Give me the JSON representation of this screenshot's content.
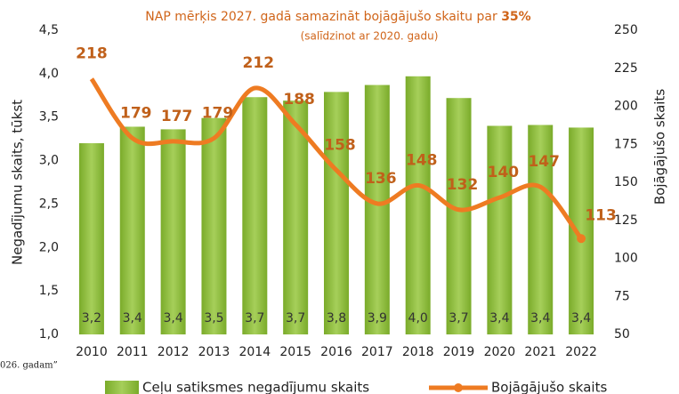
{
  "chart_data": {
    "type": "bar-line",
    "title": "NAP mērķis 2027. gadā samazināt bojāgājušo skaitu par",
    "title_highlight": "35%",
    "subtitle": "(salīdzinot ar 2020. gadu)",
    "annotation": "026. gadam”",
    "ylabel": "Negadījumu skaits, tūkst",
    "y2label": "Bojāgājušo skaits",
    "categories": [
      "2010",
      "2011",
      "2012",
      "2013",
      "2014",
      "2015",
      "2016",
      "2017",
      "2018",
      "2019",
      "2020",
      "2021",
      "2022"
    ],
    "series": [
      {
        "name": "Ceļu satiksmes negadījumu skaits",
        "type": "bar",
        "color": "#8dbb3c",
        "values": [
          3.2,
          3.39,
          3.36,
          3.49,
          3.73,
          3.69,
          3.79,
          3.87,
          3.97,
          3.72,
          3.4,
          3.41,
          3.38
        ],
        "value_labels": [
          "3,2",
          "3,4",
          "3,4",
          "3,5",
          "3,7",
          "3,7",
          "3,8",
          "3,9",
          "4,0",
          "3,7",
          "3,4",
          "3,4",
          "3,4"
        ]
      },
      {
        "name": "Bojāgājušo skaits",
        "type": "line",
        "axis": "y2",
        "color": "#ee7b22",
        "values": [
          218,
          179,
          177,
          179,
          212,
          188,
          158,
          136,
          148,
          132,
          140,
          147,
          113
        ]
      }
    ],
    "ylim": [
      1.0,
      4.5
    ],
    "yticks": [
      {
        "value": 1.0,
        "label": "1,0"
      },
      {
        "value": 1.5,
        "label": "1,5"
      },
      {
        "value": 2.0,
        "label": "2,0"
      },
      {
        "value": 2.5,
        "label": "2,5"
      },
      {
        "value": 3.0,
        "label": "3,0"
      },
      {
        "value": 3.5,
        "label": "3,5"
      },
      {
        "value": 4.0,
        "label": "4,0"
      },
      {
        "value": 4.5,
        "label": "4,5"
      }
    ],
    "y2lim": [
      50,
      250
    ],
    "y2ticks": [
      50,
      75,
      100,
      125,
      150,
      175,
      200,
      225,
      250
    ]
  }
}
